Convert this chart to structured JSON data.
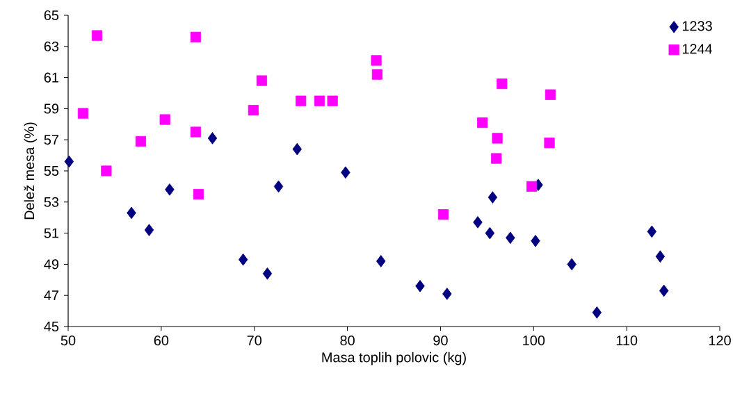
{
  "chart_data": {
    "type": "scatter",
    "xlabel": "Masa toplih polovic (kg)",
    "ylabel": "Delež mesa (%)",
    "xlim": [
      50,
      120
    ],
    "xticks": [
      50,
      60,
      70,
      80,
      90,
      100,
      110,
      120
    ],
    "ylim": [
      45,
      65
    ],
    "yticks": [
      45,
      47,
      49,
      51,
      53,
      55,
      57,
      59,
      61,
      63,
      65
    ],
    "grid": false,
    "legend": "top right",
    "series": [
      {
        "name": "1233",
        "color": "#000080",
        "marker": "diamond",
        "x": [
          50.1,
          56.8,
          58.7,
          60.9,
          65.5,
          68.8,
          71.4,
          72.6,
          74.6,
          79.8,
          83.6,
          87.8,
          90.7,
          94.0,
          95.3,
          95.6,
          97.5,
          100.5,
          100.2,
          104.1,
          106.8,
          112.7,
          113.6,
          114.0
        ],
        "values": [
          55.6,
          52.3,
          51.2,
          53.8,
          57.1,
          49.3,
          48.4,
          54.0,
          56.4,
          54.9,
          49.2,
          47.6,
          47.1,
          51.7,
          51.0,
          53.3,
          50.7,
          54.1,
          50.5,
          49.0,
          45.9,
          51.1,
          49.5,
          47.3
        ]
      },
      {
        "name": "1244",
        "color": "#ff00ff",
        "marker": "square",
        "x": [
          53.1,
          51.6,
          54.1,
          57.8,
          60.4,
          63.7,
          63.7,
          64.0,
          69.9,
          70.8,
          75.0,
          77.0,
          78.4,
          83.1,
          83.2,
          90.3,
          94.5,
          96.0,
          96.1,
          96.6,
          99.8,
          101.7,
          101.8
        ],
        "values": [
          63.7,
          58.7,
          55.0,
          56.9,
          58.3,
          63.6,
          57.5,
          53.5,
          58.9,
          60.8,
          59.5,
          59.5,
          59.5,
          62.1,
          61.2,
          52.2,
          58.1,
          55.8,
          57.1,
          60.6,
          54.0,
          56.8,
          59.9
        ]
      }
    ]
  }
}
